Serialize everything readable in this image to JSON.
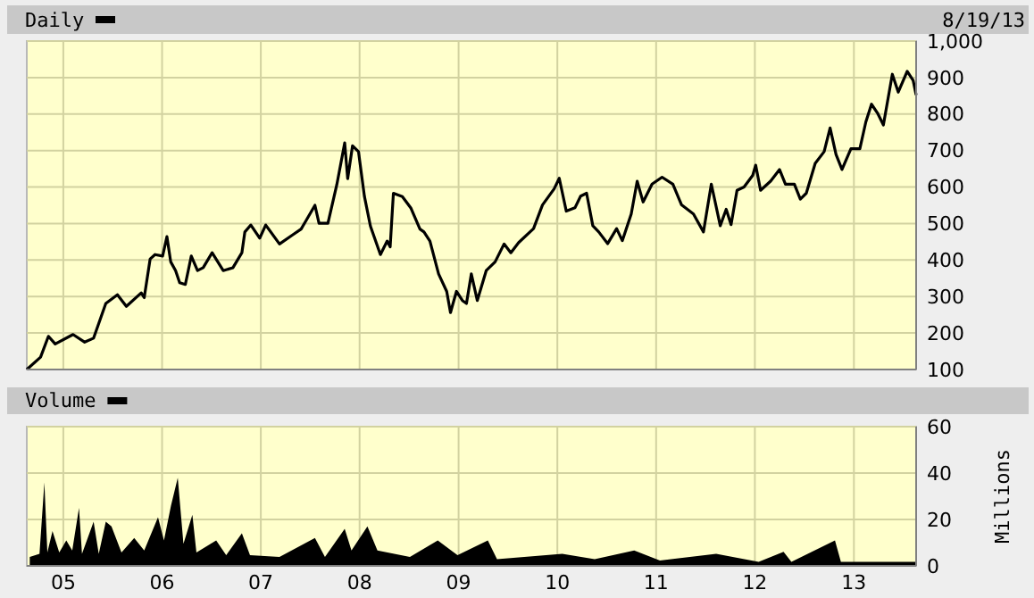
{
  "chart_data": [
    {
      "type": "line",
      "title": "Daily",
      "annotations": [
        "8/19/13"
      ],
      "xlim": [
        "2004-08-19",
        "2013-08-19"
      ],
      "ylim": [
        100,
        1000
      ],
      "yticks": [
        100,
        200,
        300,
        400,
        500,
        600,
        700,
        800,
        900,
        {
          "value": 1000,
          "label": "1,000"
        }
      ],
      "xticks": [
        {
          "value": "2005-01-01",
          "label": null
        },
        {
          "value": "2006-01-01",
          "label": null
        },
        {
          "value": "2007-01-01",
          "label": null
        },
        {
          "value": "2008-01-01",
          "label": null
        },
        {
          "value": "2009-01-01",
          "label": null
        },
        {
          "value": "2010-01-01",
          "label": null
        },
        {
          "value": "2011-01-01",
          "label": null
        },
        {
          "value": "2012-01-01",
          "label": null
        },
        {
          "value": "2013-01-01",
          "label": null
        }
      ],
      "tick_labels": "y",
      "grid": true,
      "series": [
        {
          "color": "#000000",
          "x": [
            "2004-08-19",
            "2004-10-09",
            "2004-11-07",
            "2004-12-02",
            "2005-02-06",
            "2005-03-21",
            "2005-04-23",
            "2005-06-07",
            "2005-07-20",
            "2005-08-22",
            "2005-10-16",
            "2005-10-27",
            "2005-11-18",
            "2005-12-06",
            "2006-01-03",
            "2006-01-19",
            "2006-02-02",
            "2006-02-20",
            "2006-03-07",
            "2006-03-28",
            "2006-04-19",
            "2006-05-12",
            "2006-06-02",
            "2006-07-05",
            "2006-08-15",
            "2006-09-20",
            "2006-10-23",
            "2006-11-03",
            "2006-11-25",
            "2006-12-28",
            "2007-01-19",
            "2007-03-11",
            "2007-04-27",
            "2007-05-30",
            "2007-06-18",
            "2007-07-20",
            "2007-08-04",
            "2007-09-06",
            "2007-10-09",
            "2007-11-07",
            "2007-11-18",
            "2007-12-06",
            "2007-12-28",
            "2008-01-19",
            "2008-02-10",
            "2008-03-18",
            "2008-04-12",
            "2008-04-23",
            "2008-05-05",
            "2008-06-07",
            "2008-07-09",
            "2008-08-11",
            "2008-08-26",
            "2008-09-17",
            "2008-10-19",
            "2008-11-18",
            "2008-12-02",
            "2008-12-24",
            "2009-01-15",
            "2009-01-30",
            "2009-02-17",
            "2009-03-11",
            "2009-04-13",
            "2009-05-16",
            "2009-06-18",
            "2009-07-13",
            "2009-08-11",
            "2009-10-05",
            "2009-11-07",
            "2009-12-20",
            "2010-01-08",
            "2010-02-03",
            "2010-03-07",
            "2010-03-28",
            "2010-04-19",
            "2010-05-12",
            "2010-06-03",
            "2010-07-06",
            "2010-08-08",
            "2010-08-29",
            "2010-10-01",
            "2010-10-23",
            "2010-11-14",
            "2010-12-17",
            "2011-01-23",
            "2011-03-04",
            "2011-04-05",
            "2011-05-19",
            "2011-06-25",
            "2011-07-24",
            "2011-08-26",
            "2011-09-17",
            "2011-10-05",
            "2011-10-27",
            "2011-11-22",
            "2011-12-24",
            "2012-01-04",
            "2012-01-22",
            "2012-02-28",
            "2012-04-01",
            "2012-04-23",
            "2012-05-26",
            "2012-06-17",
            "2012-07-09",
            "2012-08-11",
            "2012-09-13",
            "2012-10-05",
            "2012-10-27",
            "2012-11-18",
            "2012-12-21",
            "2013-01-23",
            "2013-02-14",
            "2013-03-07",
            "2013-03-29",
            "2013-04-20",
            "2013-05-23",
            "2013-06-14",
            "2013-07-17",
            "2013-08-08",
            "2013-08-19"
          ],
          "values": [
            100,
            134,
            191,
            170,
            196,
            175,
            186,
            281,
            305,
            273,
            310,
            297,
            403,
            415,
            411,
            464,
            395,
            371,
            338,
            333,
            411,
            371,
            379,
            420,
            371,
            379,
            420,
            477,
            496,
            460,
            496,
            444,
            468,
            485,
            509,
            550,
            501,
            501,
            607,
            721,
            623,
            713,
            697,
            574,
            493,
            415,
            452,
            436,
            583,
            574,
            542,
            485,
            477,
            452,
            362,
            314,
            256,
            314,
            289,
            281,
            362,
            289,
            371,
            395,
            444,
            420,
            448,
            486,
            551,
            595,
            624,
            534,
            543,
            575,
            583,
            494,
            477,
            445,
            486,
            453,
            526,
            616,
            559,
            608,
            627,
            608,
            551,
            526,
            477,
            608,
            494,
            539,
            497,
            591,
            600,
            632,
            660,
            591,
            616,
            648,
            608,
            608,
            567,
            583,
            665,
            697,
            762,
            689,
            648,
            705,
            705,
            778,
            827,
            803,
            770,
            909,
            860,
            917,
            892,
            852
          ]
        }
      ]
    },
    {
      "type": "area",
      "title": "Volume",
      "ylabel": "Millions",
      "xlim": [
        "2004-08-19",
        "2013-08-19"
      ],
      "ylim": [
        0,
        60
      ],
      "yticks": [
        0,
        20,
        40,
        60
      ],
      "xticks": [
        {
          "value": "2005-01-01",
          "label": "05"
        },
        {
          "value": "2006-01-01",
          "label": "06"
        },
        {
          "value": "2007-01-01",
          "label": "07"
        },
        {
          "value": "2008-01-01",
          "label": "08"
        },
        {
          "value": "2009-01-01",
          "label": "09"
        },
        {
          "value": "2010-01-01",
          "label": "10"
        },
        {
          "value": "2011-01-01",
          "label": "11"
        },
        {
          "value": "2012-01-01",
          "label": "12"
        },
        {
          "value": "2013-01-01",
          "label": "13"
        }
      ],
      "grid": true,
      "series": [
        {
          "color": "#000000",
          "x": [
            "2004-08-30",
            "2004-10-05",
            "2004-10-23",
            "2004-11-03",
            "2004-11-22",
            "2004-12-17",
            "2005-01-12",
            "2005-02-03",
            "2005-02-28",
            "2005-03-11",
            "2005-04-23",
            "2005-05-12",
            "2005-06-07",
            "2005-06-28",
            "2005-08-04",
            "2005-09-20",
            "2005-10-27",
            "2005-12-17",
            "2006-01-08",
            "2006-02-03",
            "2006-02-28",
            "2006-03-21",
            "2006-04-23",
            "2006-05-08",
            "2006-07-20",
            "2006-08-26",
            "2006-10-23",
            "2006-11-22",
            "2007-03-11",
            "2007-07-20",
            "2007-08-26",
            "2007-11-07",
            "2007-12-02",
            "2008-01-30",
            "2008-03-07",
            "2008-07-05",
            "2008-10-16",
            "2008-12-28",
            "2009-04-19",
            "2009-05-23",
            "2010-01-19",
            "2010-05-19",
            "2010-10-12",
            "2011-01-15",
            "2011-08-11",
            "2012-01-15",
            "2012-04-16",
            "2012-05-15",
            "2012-10-23",
            "2012-11-14",
            "2013-08-19"
          ],
          "values": [
            3.8,
            5.2,
            36,
            5.8,
            15,
            5.8,
            11,
            6.6,
            25,
            5.2,
            19,
            5.2,
            19,
            17,
            5.8,
            12,
            6.6,
            21,
            11,
            26,
            38,
            9.5,
            22,
            5.8,
            11,
            4.6,
            14,
            4.6,
            3.8,
            12,
            3.8,
            16,
            6.6,
            17,
            6.6,
            3.8,
            11,
            4.6,
            11,
            2.9,
            5.2,
            2.9,
            6.6,
            2.3,
            5.2,
            1.7,
            6.1,
            1.7,
            11,
            1.7,
            1.7
          ]
        }
      ]
    }
  ]
}
